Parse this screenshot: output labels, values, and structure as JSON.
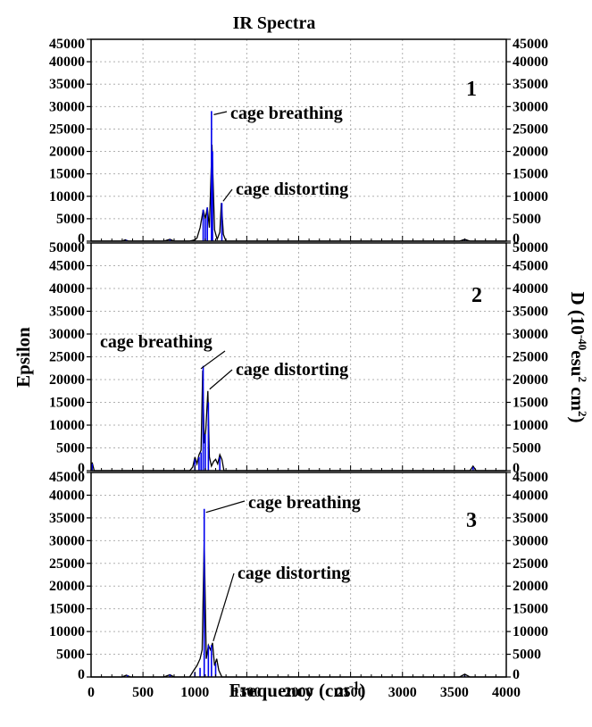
{
  "figure": {
    "title": "IR Spectra",
    "xlabel_main": "Frequency (cm",
    "xlabel_sup": "-1",
    "xlabel_close": ")",
    "ylabel_left": "Epsilon",
    "ylabel_right": {
      "parts": [
        {
          "t": "D (10",
          "sup": false
        },
        {
          "t": "-40",
          "sup": true
        },
        {
          "t": "esu",
          "sup": false
        },
        {
          "t": "2",
          "sup": true
        },
        {
          "t": " cm",
          "sup": false
        },
        {
          "t": "2",
          "sup": true
        },
        {
          "t": ")",
          "sup": false
        }
      ]
    },
    "x_ticks": [
      "0",
      "500",
      "1000",
      "1500",
      "2000",
      "2500",
      "3000",
      "3500",
      "4000"
    ],
    "colors": {
      "envelope": "#000000",
      "sticks": "#0000ee",
      "grid": "#b0b0b0"
    }
  },
  "chart_data": [
    {
      "type": "line",
      "panel_label": "1",
      "xlim": [
        0,
        4000
      ],
      "ylim": [
        0,
        45000
      ],
      "grid": true,
      "y_ticks": [
        "0",
        "5000",
        "10000",
        "15000",
        "20000",
        "25000",
        "30000",
        "35000",
        "40000",
        "45000"
      ],
      "series": [
        {
          "kind": "envelope",
          "x": [
            0,
            300,
            330,
            360,
            700,
            760,
            800,
            950,
            1000,
            1020,
            1050,
            1080,
            1100,
            1120,
            1140,
            1165,
            1190,
            1215,
            1240,
            1255,
            1275,
            1300,
            1400,
            3550,
            3600,
            3650,
            4000
          ],
          "y": [
            0,
            0,
            300,
            0,
            0,
            400,
            0,
            0,
            300,
            700,
            3000,
            7000,
            5000,
            7500,
            3000,
            21500,
            2500,
            400,
            2000,
            8500,
            1500,
            0,
            0,
            0,
            400,
            0,
            0
          ]
        },
        {
          "kind": "sticks",
          "x": [
            340,
            760,
            1080,
            1100,
            1120,
            1160,
            1170,
            1260,
            3600
          ],
          "y": [
            300,
            400,
            7000,
            5000,
            7500,
            29000,
            20000,
            8500,
            300
          ]
        }
      ],
      "annotations": [
        {
          "text": "cage breathing",
          "x": 1165,
          "y": 29000
        },
        {
          "text": "cage distorting",
          "x": 1255,
          "y": 8500
        }
      ]
    },
    {
      "type": "line",
      "panel_label": "2",
      "xlim": [
        0,
        4000
      ],
      "ylim": [
        0,
        50000
      ],
      "grid": true,
      "y_ticks": [
        "0",
        "5000",
        "10000",
        "15000",
        "20000",
        "25000",
        "30000",
        "35000",
        "40000",
        "45000",
        "50000"
      ],
      "series": [
        {
          "kind": "envelope",
          "x": [
            0,
            10,
            30,
            950,
            980,
            1000,
            1020,
            1040,
            1060,
            1075,
            1090,
            1105,
            1125,
            1140,
            1160,
            1180,
            1200,
            1220,
            1240,
            1260,
            1280,
            1300,
            3650,
            3680,
            3710,
            4000
          ],
          "y": [
            0,
            1800,
            0,
            0,
            800,
            3000,
            1500,
            3500,
            4500,
            22000,
            6000,
            9000,
            17500,
            3000,
            1000,
            2000,
            2500,
            1500,
            3500,
            2500,
            0,
            0,
            0,
            1000,
            0,
            0
          ]
        },
        {
          "kind": "sticks",
          "x": [
            10,
            1000,
            1040,
            1060,
            1080,
            1100,
            1130,
            1240,
            3680
          ],
          "y": [
            1500,
            2500,
            3000,
            4000,
            23000,
            8000,
            15000,
            3000,
            800
          ]
        }
      ],
      "annotations": [
        {
          "text": "cage breathing",
          "x": 1075,
          "y": 22000
        },
        {
          "text": "cage distorting",
          "x": 1125,
          "y": 17500
        }
      ]
    },
    {
      "type": "line",
      "panel_label": "3",
      "xlim": [
        0,
        4000
      ],
      "ylim": [
        0,
        45000
      ],
      "grid": true,
      "y_ticks": [
        "0",
        "5000",
        "10000",
        "15000",
        "20000",
        "25000",
        "30000",
        "35000",
        "40000",
        "45000"
      ],
      "series": [
        {
          "kind": "envelope",
          "x": [
            0,
            300,
            340,
            380,
            700,
            760,
            800,
            950,
            990,
            1020,
            1050,
            1070,
            1090,
            1110,
            1130,
            1150,
            1170,
            1190,
            1210,
            1230,
            1260,
            1300,
            3550,
            3600,
            3650,
            4000
          ],
          "y": [
            0,
            0,
            400,
            0,
            0,
            500,
            0,
            0,
            1500,
            2500,
            4000,
            6000,
            30000,
            4000,
            7000,
            6000,
            7500,
            2500,
            4000,
            1500,
            0,
            0,
            0,
            600,
            0,
            0
          ]
        },
        {
          "kind": "sticks",
          "x": [
            350,
            760,
            1000,
            1050,
            1090,
            1130,
            1160,
            1200,
            3600
          ],
          "y": [
            400,
            500,
            1000,
            2000,
            37000,
            7000,
            7000,
            3000,
            400
          ]
        }
      ],
      "annotations": [
        {
          "text": "cage breathing",
          "x": 1090,
          "y": 37000
        },
        {
          "text": "cage distorting",
          "x": 1160,
          "y": 7500
        }
      ]
    }
  ]
}
